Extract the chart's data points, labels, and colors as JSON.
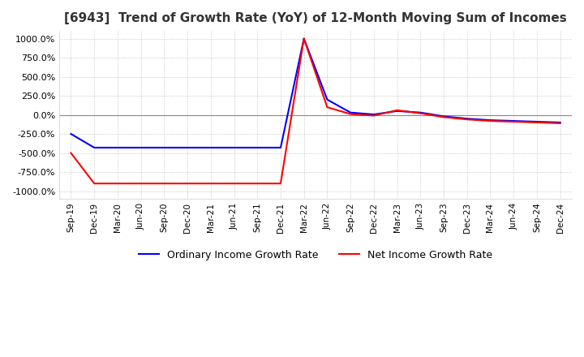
{
  "title": "[6943]  Trend of Growth Rate (YoY) of 12-Month Moving Sum of Incomes",
  "title_fontsize": 11,
  "ylim": [
    -1100,
    1100
  ],
  "yticks": [
    -1000,
    -750,
    -500,
    -250,
    0,
    250,
    500,
    750,
    1000
  ],
  "ytick_labels": [
    "-1000.0%",
    "-750.0%",
    "-500.0%",
    "-250.0%",
    "0.0%",
    "250.0%",
    "500.0%",
    "750.0%",
    "1000.0%"
  ],
  "background_color": "#ffffff",
  "plot_bg_color": "#ffffff",
  "grid_color": "#aaaaaa",
  "line_color_ordinary": "#0000ff",
  "line_color_net": "#ff0000",
  "line_width": 1.5,
  "legend_labels": [
    "Ordinary Income Growth Rate",
    "Net Income Growth Rate"
  ],
  "x_dates": [
    "Sep-19",
    "Dec-19",
    "Mar-20",
    "Jun-20",
    "Sep-20",
    "Dec-20",
    "Mar-21",
    "Jun-21",
    "Sep-21",
    "Dec-21",
    "Mar-22",
    "Jun-22",
    "Sep-22",
    "Dec-22",
    "Mar-23",
    "Jun-23",
    "Sep-23",
    "Dec-23",
    "Mar-24",
    "Jun-24",
    "Sep-24",
    "Dec-24"
  ],
  "ordinary_income_growth": [
    -250,
    -430,
    -430,
    -430,
    -430,
    -430,
    -430,
    -430,
    -430,
    -430,
    1000,
    200,
    30,
    5,
    50,
    30,
    -20,
    -50,
    -70,
    -80,
    -90,
    -100
  ],
  "net_income_growth": [
    -500,
    -900,
    -900,
    -900,
    -900,
    -900,
    -900,
    -900,
    -900,
    -900,
    1000,
    100,
    10,
    -10,
    60,
    20,
    -30,
    -60,
    -80,
    -90,
    -100,
    -110
  ]
}
